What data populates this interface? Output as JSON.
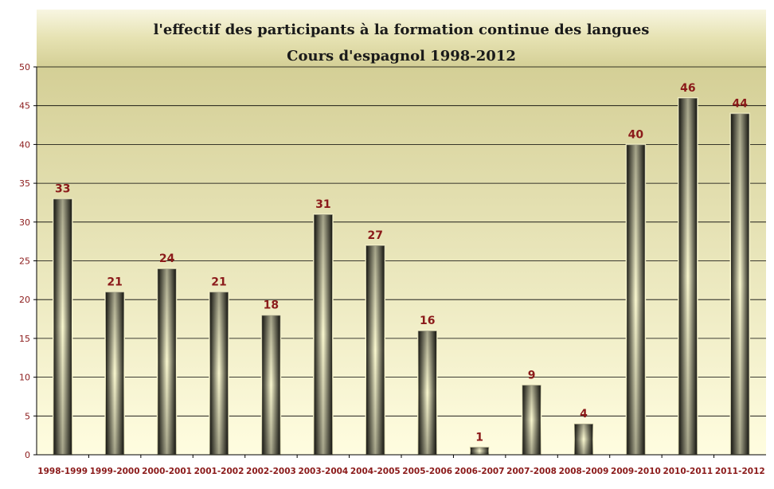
{
  "chart_data": {
    "type": "bar",
    "title": "l'effectif des participants à la formation continue des langues",
    "subtitle": "Cours d'espagnol 1998-2012",
    "xlabel": "",
    "ylabel": "",
    "ylim": [
      0,
      50
    ],
    "yticks": [
      0,
      5,
      10,
      15,
      20,
      25,
      30,
      35,
      40,
      45,
      50
    ],
    "grid": true,
    "legend": "none",
    "categories": [
      "1998-1999",
      "1999-2000",
      "2000-2001",
      "2001-2002",
      "2002-2003",
      "2003-2004",
      "2004-2005",
      "2005-2006",
      "2006-2007",
      "2007-2008",
      "2008-2009",
      "2009-2010",
      "2010-2011",
      "2011-2012"
    ],
    "values": [
      33,
      21,
      24,
      21,
      18,
      31,
      27,
      16,
      1,
      9,
      4,
      40,
      46,
      44
    ],
    "colors": {
      "plot_bg_top": "#d4cf96",
      "plot_bg_bottom": "#fffde0",
      "bar_dark": "#151510",
      "bar_light": "#fdfbd2",
      "label": "#8b1a1a",
      "grid": "#000000"
    }
  }
}
